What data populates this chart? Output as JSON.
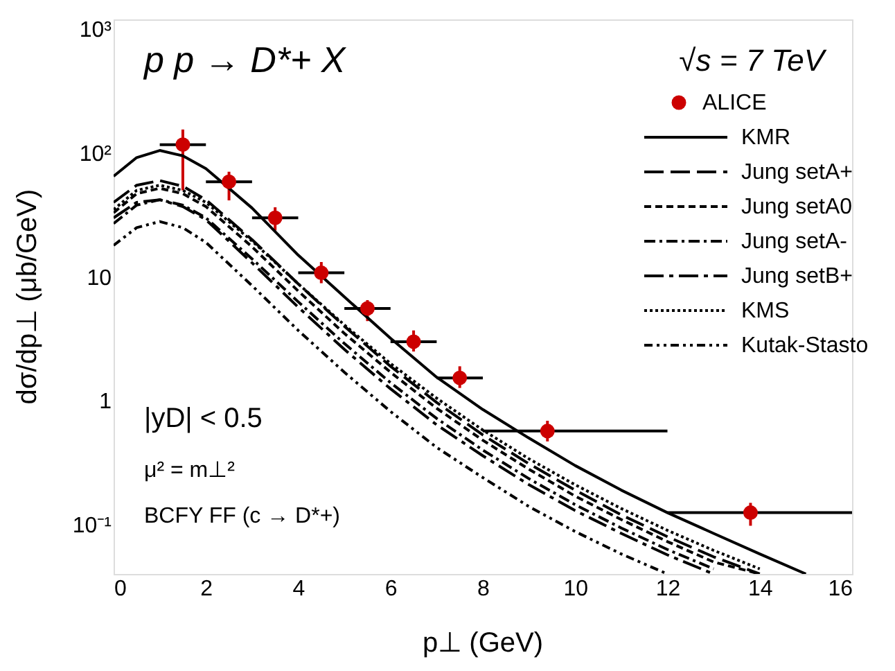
{
  "chart_data": {
    "type": "line",
    "xlabel": "p⊥  (GeV)",
    "ylabel": "dσ/dp⊥  (μb/GeV)",
    "xlim": [
      0,
      16
    ],
    "xticks": [
      0,
      2,
      4,
      6,
      8,
      10,
      12,
      14,
      16
    ],
    "ylim": [
      0.04,
      1200
    ],
    "yticks": [
      {
        "value": 0.1,
        "label": "10⁻¹"
      },
      1,
      10,
      {
        "value": 100,
        "label": "10²"
      },
      {
        "value": 1000,
        "label": "10³"
      }
    ],
    "log": "y",
    "grid": false,
    "legend": "top right",
    "annotations": [
      "p p → D*+ X",
      "√s = 7 TeV",
      "|yD| < 0.5",
      "μ² = m⊥²",
      "BCFY FF (c → D*+)"
    ],
    "series": [
      {
        "name": "ALICE",
        "type": "scatter",
        "color": "#cc0000",
        "marker": "circle",
        "x": [
          1.5,
          2.5,
          3.5,
          4.5,
          5.5,
          6.5,
          7.5,
          9.4,
          13.8
        ],
        "values": [
          117,
          58.7,
          30,
          10.8,
          5.57,
          3.0,
          1.53,
          0.57,
          0.125
        ],
        "errors": [
          [
            50,
            155
          ],
          [
            41.5,
            70.7
          ],
          [
            23.7,
            36.5
          ],
          [
            8.9,
            13.2
          ],
          [
            4.4,
            6.5
          ],
          [
            2.5,
            3.7
          ],
          [
            1.27,
            1.9
          ],
          [
            0.47,
            0.69
          ],
          [
            0.098,
            0.15
          ]
        ],
        "xerrors": [
          [
            1,
            2
          ],
          [
            2,
            3
          ],
          [
            3,
            4
          ],
          [
            4,
            5
          ],
          [
            5,
            6
          ],
          [
            6,
            7
          ],
          [
            7,
            8
          ],
          [
            8,
            12
          ],
          [
            12,
            16
          ]
        ]
      },
      {
        "name": "KMR",
        "color": "#000000",
        "line_style": "solid",
        "x": [
          0,
          0.5,
          1,
          1.5,
          2,
          3,
          4,
          5,
          6,
          7,
          8,
          9,
          10,
          11,
          12,
          13,
          14,
          15
        ],
        "values": [
          65,
          92,
          105,
          95,
          75,
          36,
          15,
          6.9,
          3.2,
          1.55,
          0.85,
          0.5,
          0.3,
          0.19,
          0.125,
          0.085,
          0.058,
          0.04
        ]
      },
      {
        "name": "Jung setA+",
        "color": "#000000",
        "line_style": "dashed",
        "x": [
          0,
          0.5,
          1,
          1.5,
          2,
          3,
          4,
          5,
          6,
          7,
          8,
          9,
          10,
          11,
          12,
          13,
          14
        ],
        "values": [
          40,
          55,
          60,
          54,
          42,
          20,
          8.8,
          4.0,
          1.9,
          0.97,
          0.53,
          0.31,
          0.19,
          0.12,
          0.08,
          0.055,
          0.04
        ]
      },
      {
        "name": "Jung setA0",
        "color": "#000000",
        "line_style": "dashed",
        "x": [
          0,
          0.5,
          1,
          1.5,
          2,
          3,
          4,
          5,
          6,
          7,
          8,
          9,
          10,
          11,
          12,
          13,
          14
        ],
        "values": [
          33,
          47,
          52,
          47,
          37,
          17.5,
          7.7,
          3.5,
          1.7,
          0.87,
          0.48,
          0.28,
          0.17,
          0.11,
          0.073,
          0.05,
          0.04
        ]
      },
      {
        "name": "Jung setA-",
        "color": "#000000",
        "line_style": "dashed",
        "x": [
          0,
          0.5,
          1,
          1.5,
          2,
          3,
          4,
          5,
          6,
          7,
          8,
          9,
          10,
          11,
          12,
          13
        ],
        "values": [
          27,
          38,
          42,
          38,
          30,
          14,
          6.3,
          2.9,
          1.4,
          0.72,
          0.4,
          0.235,
          0.145,
          0.094,
          0.063,
          0.044
        ]
      },
      {
        "name": "Jung setB+",
        "color": "#000000",
        "line_style": "dashed",
        "x": [
          0,
          0.5,
          1,
          1.5,
          2,
          3,
          4,
          5,
          6,
          7,
          8,
          9,
          10,
          11,
          12,
          13
        ],
        "values": [
          30,
          40,
          42,
          37,
          29,
          13,
          5.7,
          2.6,
          1.25,
          0.64,
          0.36,
          0.21,
          0.13,
          0.085,
          0.057,
          0.04
        ]
      },
      {
        "name": "KMS",
        "color": "#000000",
        "line_style": "dotted",
        "x": [
          0,
          0.5,
          1,
          1.5,
          2,
          3,
          4,
          5,
          6,
          7,
          8,
          9,
          10,
          11,
          12,
          13,
          14
        ],
        "values": [
          35,
          50,
          55,
          50,
          40,
          19.5,
          8.8,
          4.1,
          2.0,
          1.05,
          0.58,
          0.34,
          0.21,
          0.135,
          0.09,
          0.062,
          0.044
        ]
      },
      {
        "name": "Kutak-Stasto",
        "color": "#000000",
        "line_style": "dotted",
        "x": [
          0,
          0.5,
          1,
          1.5,
          2,
          3,
          4,
          5,
          6,
          7,
          8,
          9,
          10,
          11,
          12
        ],
        "values": [
          18,
          25,
          28,
          25,
          19,
          8.5,
          3.7,
          1.7,
          0.82,
          0.42,
          0.24,
          0.14,
          0.088,
          0.058,
          0.04
        ]
      }
    ]
  }
}
